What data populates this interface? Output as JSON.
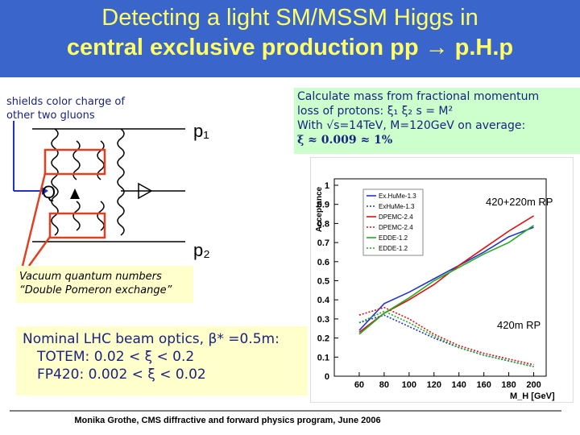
{
  "title": {
    "lines": [
      "Detecting a light SM/MSSM Higgs in",
      "central exclusive production pp → p.H.p"
    ]
  },
  "diagram": {
    "note_lines": [
      "shields color charge of",
      "other two gluons"
    ],
    "labels": [
      "p₁",
      "p₂",
      "Q"
    ]
  },
  "calc": {
    "lines": [
      "Calculate mass from fractional momentum",
      "loss of protons: ξ₁ ξ₂ s = M²",
      "With √s=14TeV, M=120GeV on average:",
      "ξ ≈ 0.009 ≈ 1%"
    ]
  },
  "vacuum": {
    "lines": [
      "Vacuum quantum numbers",
      "“Double Pomeron exchange”"
    ]
  },
  "optics": {
    "lines": [
      "Nominal LHC beam optics, β* =0.5m:",
      "TOTEM:    0.02 < ξ < 0.2",
      "FP420:   0.002 < ξ < 0.02"
    ]
  },
  "footer": "Monika Grothe, CMS diffractive and forward physics program, June 2006",
  "chart_data": {
    "type": "line",
    "x_label": "M_H [GeV]",
    "y_label": "Acceptance",
    "x": [
      60,
      80,
      100,
      120,
      140,
      160,
      180,
      200
    ],
    "xlim": [
      40,
      210
    ],
    "xticks": [
      60,
      80,
      100,
      120,
      140,
      160,
      180,
      200
    ],
    "ylim": [
      0,
      1
    ],
    "yticks": [
      0,
      0.1,
      0.2,
      0.3,
      0.4,
      0.5,
      0.6,
      0.7,
      0.8,
      0.9,
      1
    ],
    "annotations": [
      "420+220m RP",
      "420m RP"
    ],
    "series": [
      {
        "name": "Ex.HuMe-1.3",
        "color": "#2233cc",
        "style": "solid",
        "values": [
          0.24,
          0.38,
          0.44,
          0.51,
          0.58,
          0.65,
          0.73,
          0.78
        ]
      },
      {
        "name": "ExHuMe-1.3",
        "color": "#2233cc",
        "style": "dotted",
        "values": [
          0.28,
          0.32,
          0.26,
          0.2,
          0.15,
          0.11,
          0.08,
          0.05
        ]
      },
      {
        "name": "DPEMC-2.4",
        "color": "#dd1111",
        "style": "solid",
        "values": [
          0.23,
          0.33,
          0.4,
          0.48,
          0.58,
          0.67,
          0.76,
          0.84
        ]
      },
      {
        "name": "DPEMC-2.4",
        "color": "#dd1111",
        "style": "dotted",
        "values": [
          0.32,
          0.36,
          0.3,
          0.22,
          0.16,
          0.12,
          0.09,
          0.06
        ]
      },
      {
        "name": "EDDE-1.2",
        "color": "#22aa22",
        "style": "solid",
        "values": [
          0.22,
          0.33,
          0.41,
          0.5,
          0.57,
          0.64,
          0.7,
          0.79
        ]
      },
      {
        "name": "EDDE-1.2",
        "color": "#22aa22",
        "style": "dotted",
        "values": [
          0.28,
          0.34,
          0.28,
          0.21,
          0.15,
          0.11,
          0.08,
          0.05
        ]
      }
    ]
  }
}
